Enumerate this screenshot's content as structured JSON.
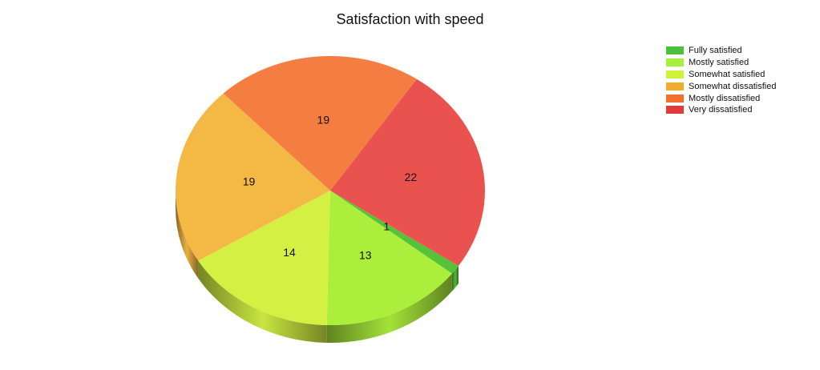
{
  "chart_data": {
    "type": "pie",
    "title": "Satisfaction with speed",
    "categories": [
      "Fully satisfied",
      "Mostly satisfied",
      "Somewhat satisfied",
      "Somewhat dissatisfied",
      "Mostly dissatisfied",
      "Very dissatisfied"
    ],
    "values": [
      1,
      13,
      14,
      19,
      19,
      22
    ],
    "colors": [
      "#56c23a",
      "#acee3c",
      "#d4f143",
      "#f3b944",
      "#f47e41",
      "#ea5250"
    ],
    "legend_colors": [
      "#4cc23c",
      "#a8f039",
      "#d2f139",
      "#f2ac2c",
      "#f27030",
      "#e03a3a"
    ],
    "legend_position": "top-right",
    "three_d": true
  }
}
